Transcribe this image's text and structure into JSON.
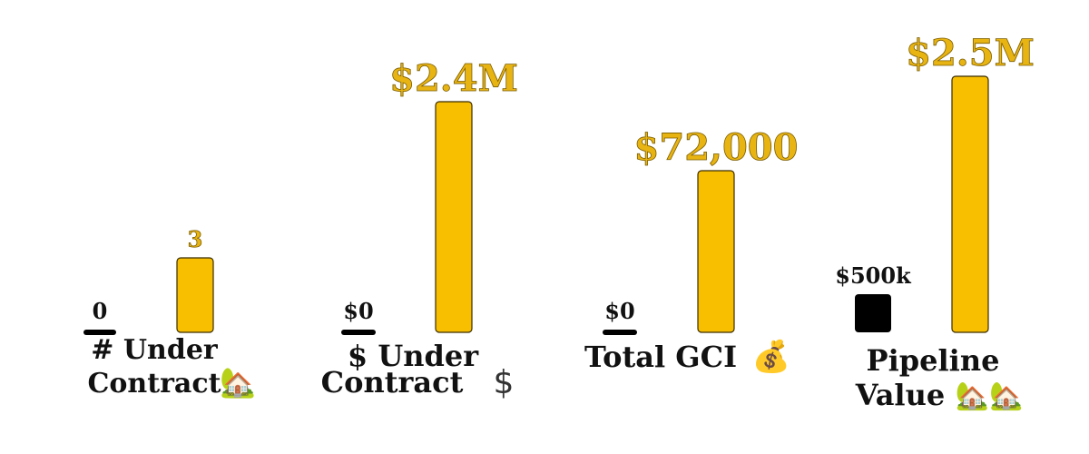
{
  "colors": {
    "accent": "#f8bf00",
    "accent_text": "#e8b412",
    "before": "#000000",
    "text": "#111111"
  },
  "chart_data": [
    {
      "type": "bar",
      "categories": [
        "",
        ""
      ],
      "values": [
        0,
        3
      ],
      "value_labels": [
        "0",
        "3"
      ],
      "xlabel_lines": [
        "# Under",
        "Contract"
      ],
      "icon": "house-with-garden-icon",
      "icon_glyph": "🏡"
    },
    {
      "type": "bar",
      "categories": [
        "",
        ""
      ],
      "values": [
        0,
        2400000
      ],
      "value_labels": [
        "$0",
        "$2.4M"
      ],
      "xlabel_lines": [
        "$ Under",
        "Contract"
      ],
      "icon": "dollar-sign-icon",
      "icon_glyph": "$"
    },
    {
      "type": "bar",
      "categories": [
        "",
        ""
      ],
      "values": [
        0,
        72000
      ],
      "value_labels": [
        "$0",
        "$72,000"
      ],
      "xlabel_lines": [
        "Total GCI"
      ],
      "icon": "money-bag-icon",
      "icon_glyph": "💰"
    },
    {
      "type": "bar",
      "categories": [
        "",
        ""
      ],
      "values": [
        500000,
        2500000
      ],
      "value_labels": [
        "$500k",
        "$2.5M"
      ],
      "xlabel_lines": [
        "Pipeline",
        "Value"
      ],
      "icon": "houses-icon",
      "icon_glyph": "🏡🏡"
    }
  ]
}
